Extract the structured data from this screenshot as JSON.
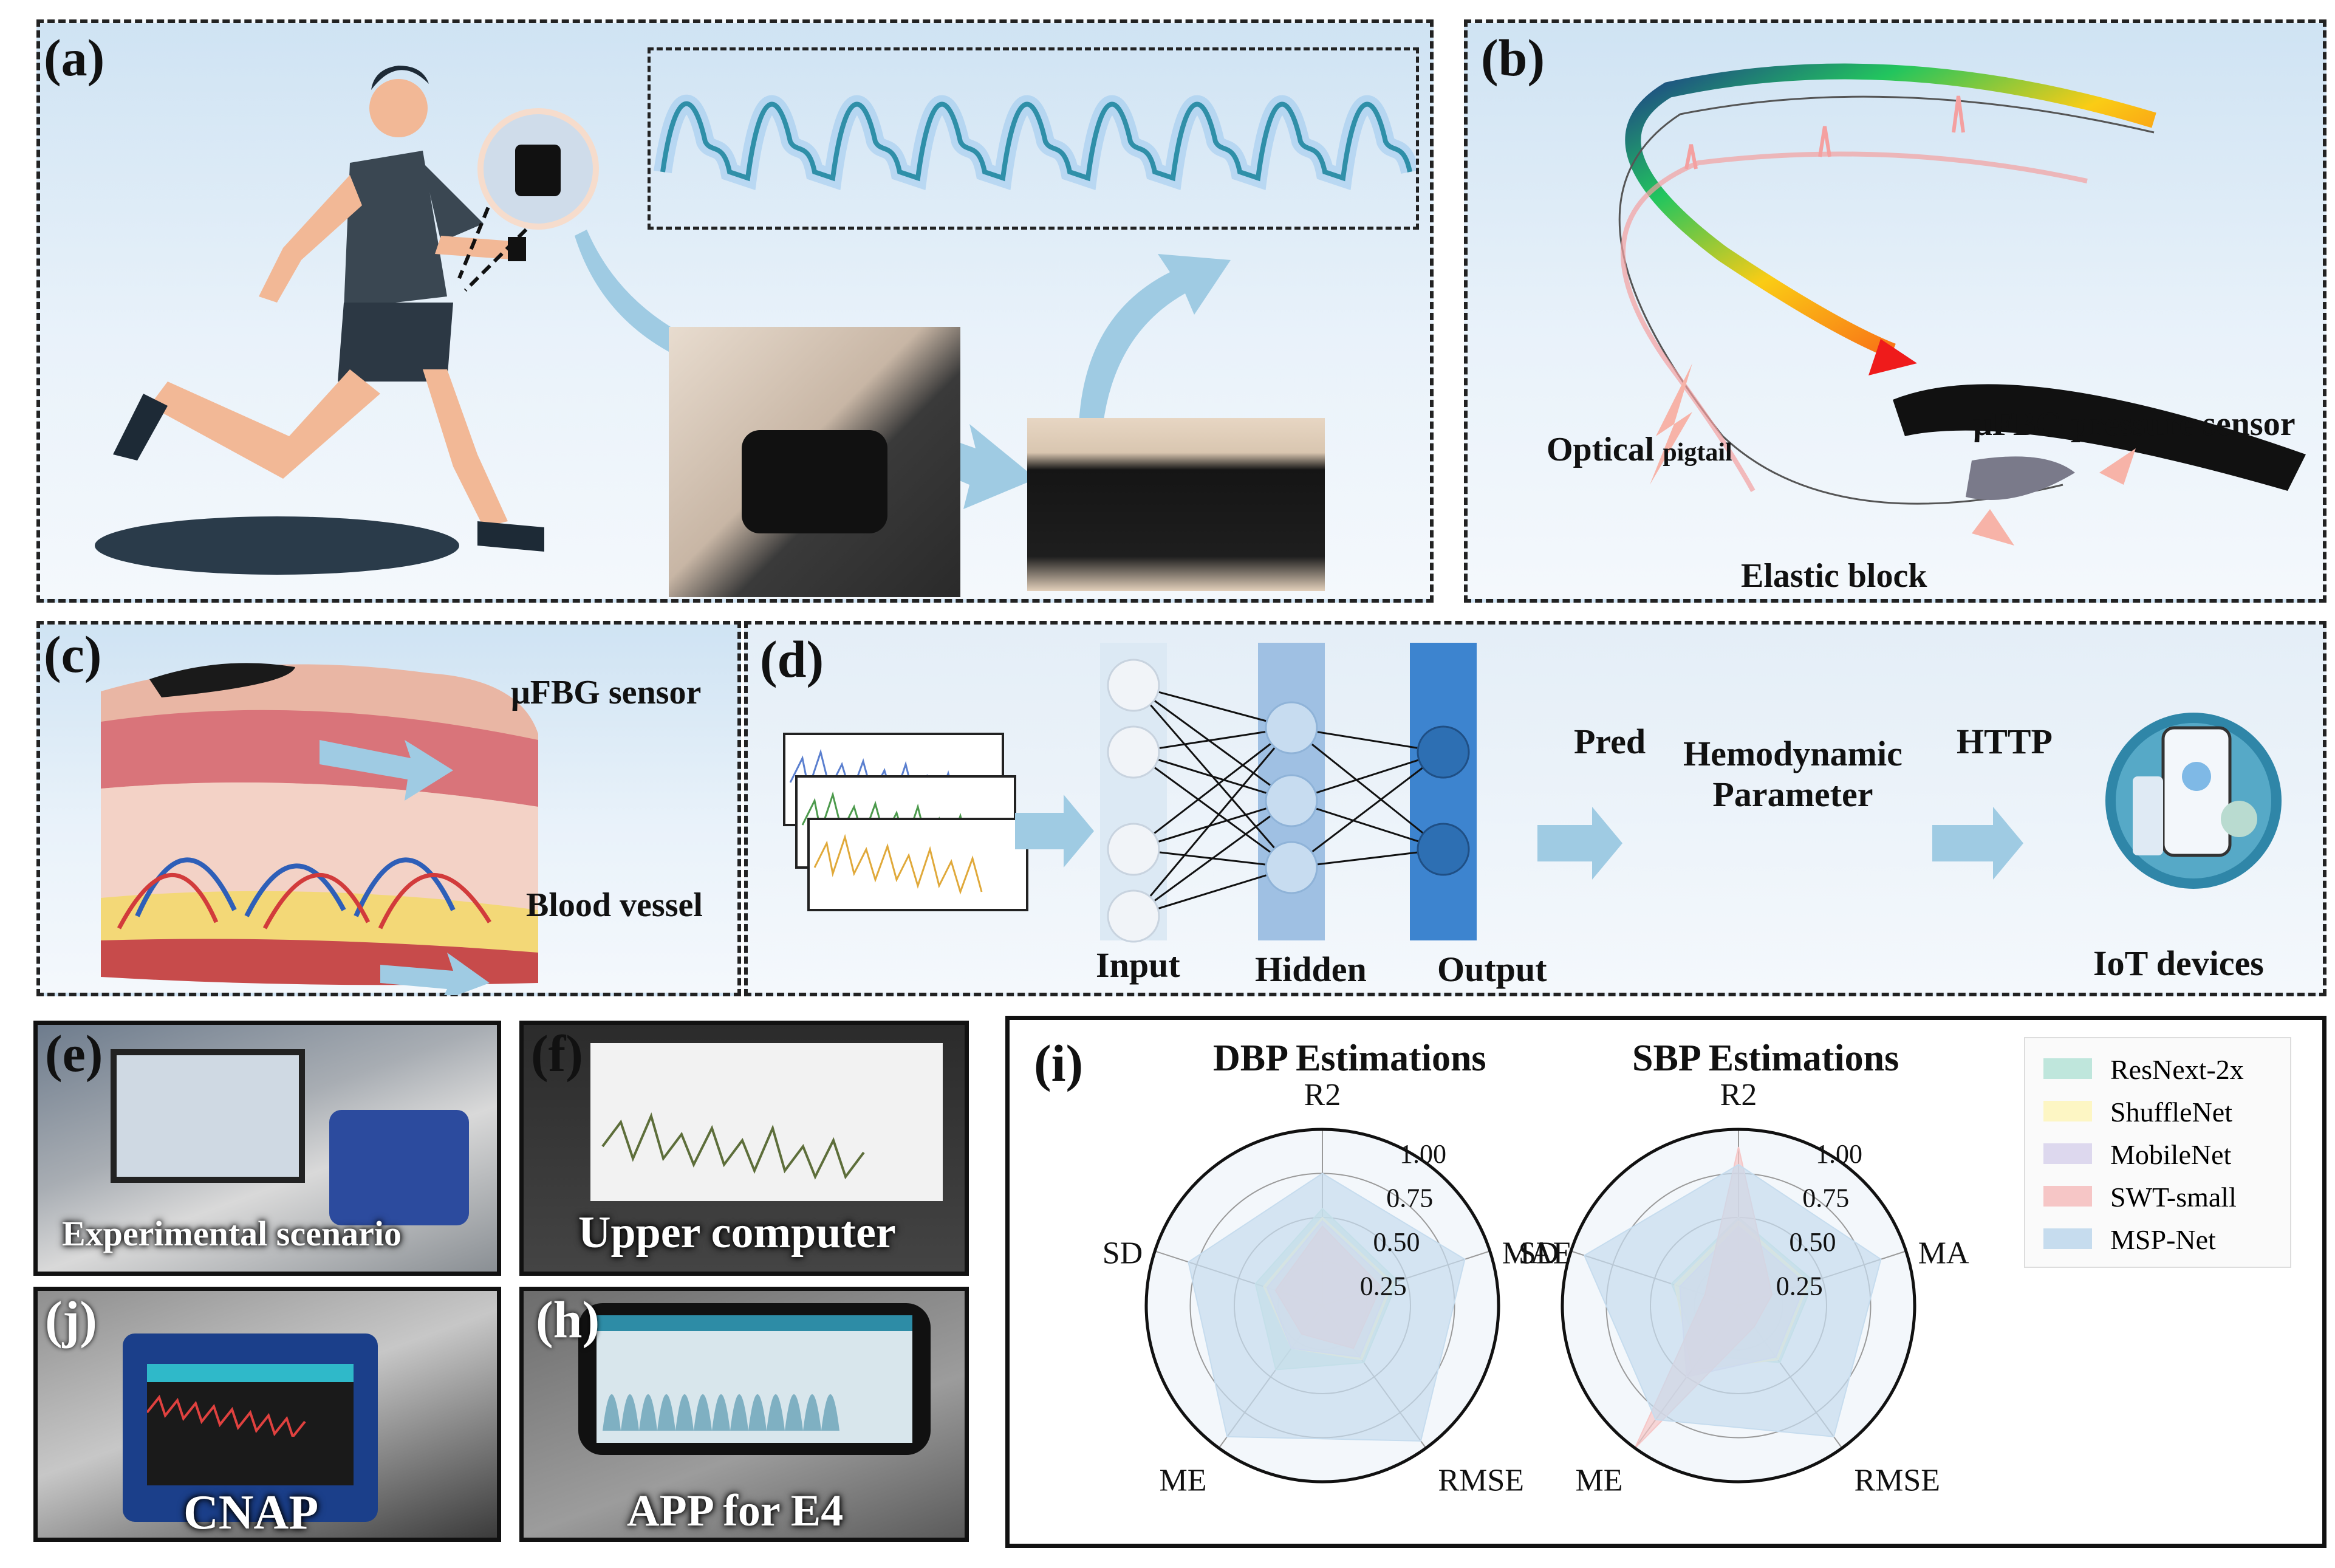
{
  "panels": {
    "a": {
      "label": "(a)"
    },
    "b": {
      "label": "(b)",
      "optical_pigtail": "Optical",
      "optical_pigtail_sub": "pigtail",
      "sensor": "μFBG pressure sensor",
      "elastic_block": "Elastic block"
    },
    "c": {
      "label": "(c)",
      "sensor": "μFBG sensor",
      "vessel": "Blood vessel"
    },
    "d": {
      "label": "(d)",
      "input": "Input",
      "hidden": "Hidden",
      "output": "Output",
      "pred": "Pred",
      "hemo_line1": "Hemodynamic",
      "hemo_line2": "Parameter",
      "http": "HTTP",
      "iot": "IoT devices"
    },
    "e": {
      "label": "(e)",
      "caption": "Experimental scenario"
    },
    "f": {
      "label": "(f)",
      "caption": "Upper computer"
    },
    "j": {
      "label": "(j)",
      "caption": "CNAP"
    },
    "h": {
      "label": "(h)",
      "caption": "APP for E4"
    },
    "i": {
      "label": "(i)"
    }
  },
  "chart_data": [
    {
      "type": "radar",
      "title": "DBP Estimations",
      "axes": [
        "R2",
        "MAE",
        "RMSE",
        "ME",
        "SD"
      ],
      "radial_ticks": [
        "0.25",
        "0.50",
        "0.75",
        "1.00"
      ],
      "rlim": [
        0,
        1
      ],
      "series": [
        {
          "name": "ResNext-2x",
          "values": [
            0.55,
            0.45,
            0.4,
            0.45,
            0.4
          ],
          "color": "#bfe6dc"
        },
        {
          "name": "ShuffleNet",
          "values": [
            0.5,
            0.42,
            0.38,
            0.3,
            0.35
          ],
          "color": "#fdf6c4"
        },
        {
          "name": "MobileNet",
          "values": [
            0.48,
            0.4,
            0.36,
            0.3,
            0.33
          ],
          "color": "#ddd8ee"
        },
        {
          "name": "SWT-small",
          "values": [
            0.45,
            0.35,
            0.3,
            0.2,
            0.28
          ],
          "color": "#f6c6c6"
        },
        {
          "name": "MSP-Net",
          "values": [
            0.75,
            0.85,
            0.95,
            0.92,
            0.8
          ],
          "color": "#c6dcee"
        }
      ]
    },
    {
      "type": "radar",
      "title": "SBP Estimations",
      "axes": [
        "R2",
        "MAE",
        "RMSE",
        "ME",
        "SD"
      ],
      "radial_ticks": [
        "0.25",
        "0.50",
        "0.75",
        "1.00"
      ],
      "rlim": [
        0,
        1
      ],
      "series": [
        {
          "name": "ResNext-2x",
          "values": [
            0.5,
            0.45,
            0.4,
            0.35,
            0.4
          ],
          "color": "#bfe6dc"
        },
        {
          "name": "ShuffleNet",
          "values": [
            0.48,
            0.42,
            0.38,
            0.45,
            0.38
          ],
          "color": "#fdf6c4"
        },
        {
          "name": "MobileNet",
          "values": [
            0.45,
            0.4,
            0.36,
            0.5,
            0.35
          ],
          "color": "#ddd8ee"
        },
        {
          "name": "SWT-small",
          "values": [
            0.9,
            0.2,
            0.15,
            1.0,
            0.2
          ],
          "color": "#f6c6c6"
        },
        {
          "name": "MSP-Net",
          "values": [
            0.8,
            0.85,
            0.92,
            0.8,
            0.92
          ],
          "color": "#c6dcee"
        }
      ]
    }
  ],
  "legend": [
    "ResNext-2x",
    "ShuffleNet",
    "MobileNet",
    "SWT-small",
    "MSP-Net"
  ],
  "colors": {
    "legend_swatches": [
      "#bfe6dc",
      "#fdf6c4",
      "#ddd8ee",
      "#f6c6c6",
      "#c6dcee"
    ]
  }
}
